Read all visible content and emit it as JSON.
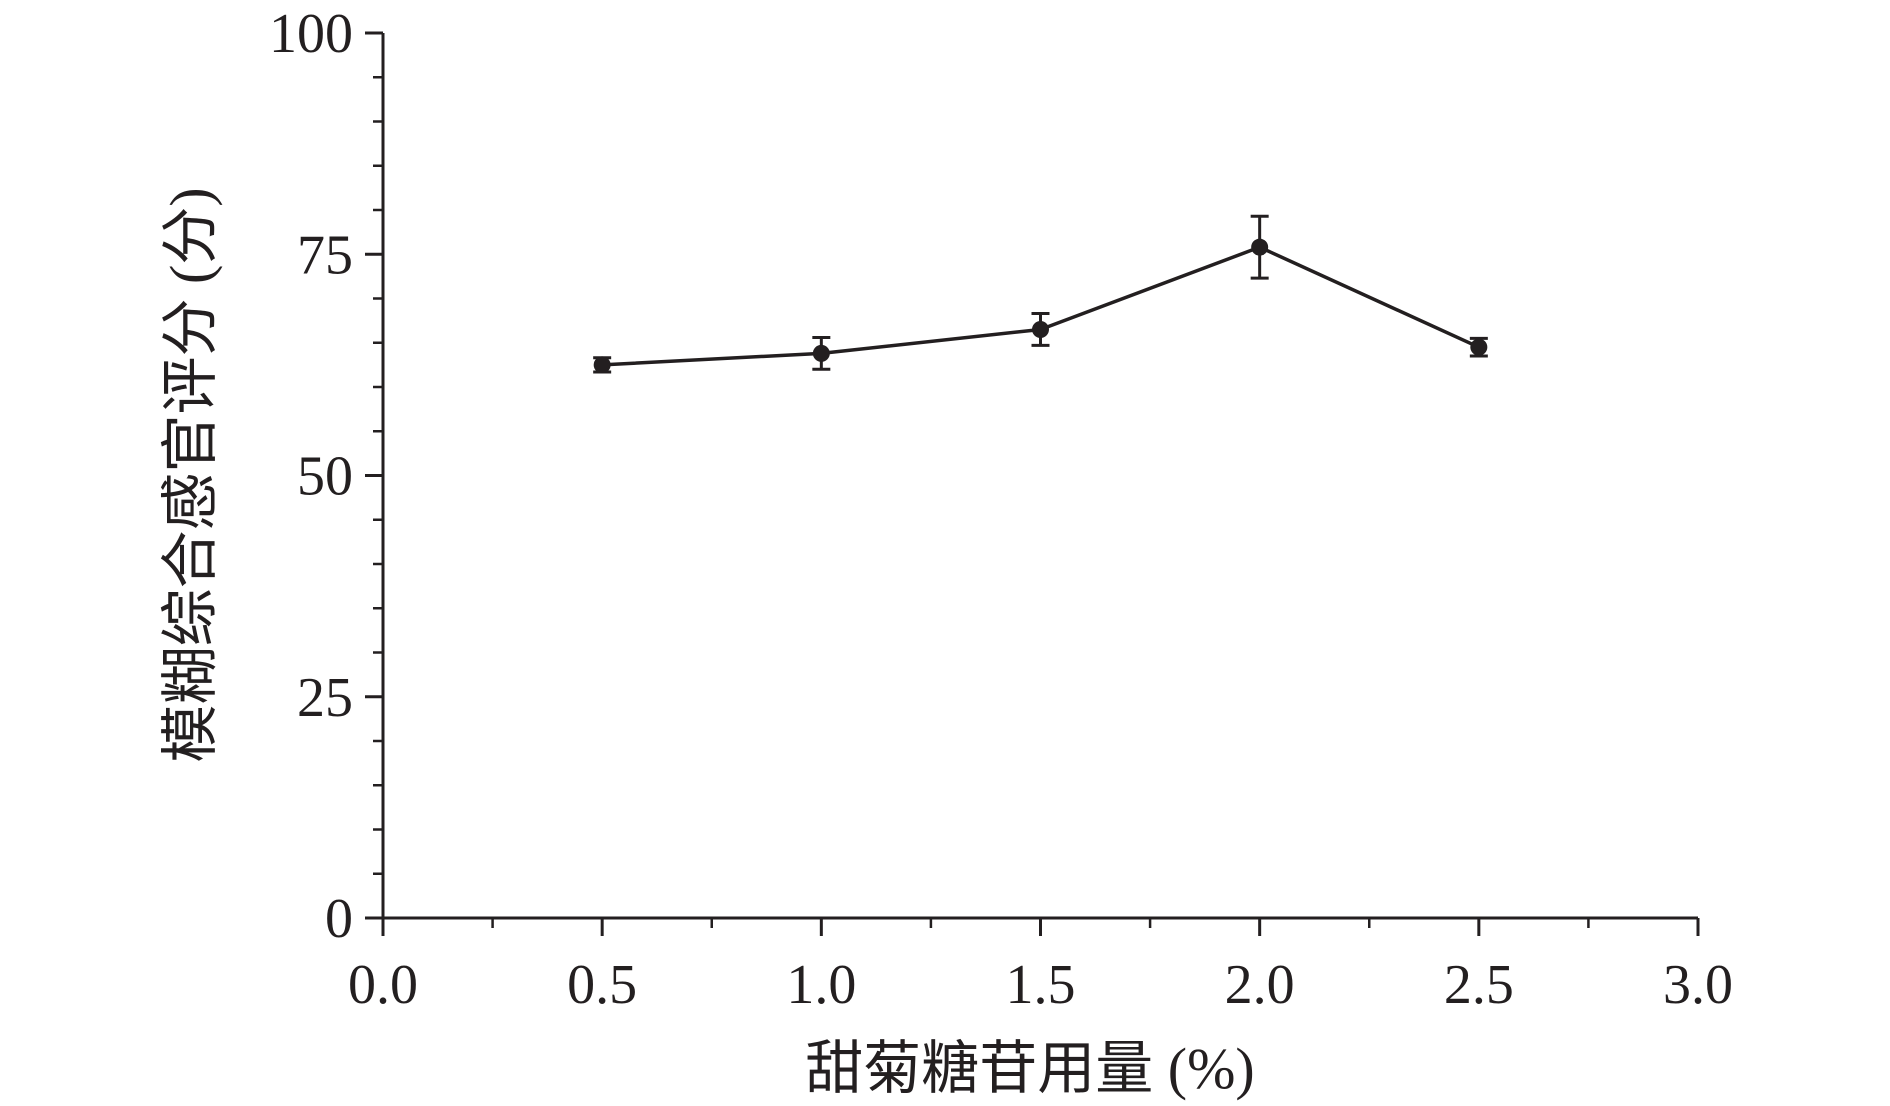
{
  "chart_data": {
    "type": "line",
    "title": "",
    "xlabel": "甜菊糖苷用量 (%)",
    "ylabel": "模糊综合感官评分 (分)",
    "xlim": [
      0,
      3
    ],
    "ylim": [
      0,
      100
    ],
    "x_ticks": [
      "0.0",
      "0.5",
      "1.0",
      "1.5",
      "2.0",
      "2.5",
      "3.0"
    ],
    "y_ticks": [
      "0",
      "25",
      "50",
      "75",
      "100"
    ],
    "x_tick_values": [
      0,
      0.5,
      1.0,
      1.5,
      2.0,
      2.5,
      3.0
    ],
    "y_tick_values": [
      0,
      25,
      50,
      75,
      100
    ],
    "y_minor_step": 5,
    "grid": false,
    "series": [
      {
        "x": [
          0.5,
          1.0,
          1.5,
          2.0,
          2.5
        ],
        "y": [
          62.5,
          63.8,
          66.5,
          75.8,
          64.5
        ],
        "error": [
          0.8,
          1.8,
          1.8,
          3.5,
          1.0
        ],
        "color": "#231f20",
        "marker": "circle"
      }
    ]
  }
}
